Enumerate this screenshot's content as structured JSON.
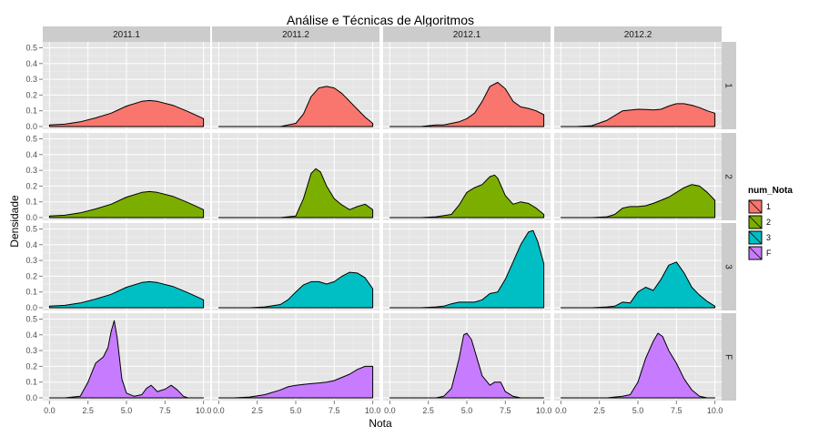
{
  "chart_data": {
    "type": "area",
    "subtype": "faceted density (ridge grid)",
    "title": "Análise e Técnicas de Algoritmos",
    "xlabel": "Nota",
    "ylabel": "Densidade",
    "xlim": [
      0,
      10
    ],
    "ylim": [
      0,
      0.52
    ],
    "x_ticks": [
      "0.0",
      "2.5",
      "5.0",
      "7.5",
      "10.0"
    ],
    "y_ticks": [
      "0.0",
      "0.1",
      "0.2",
      "0.3",
      "0.4",
      "0.5"
    ],
    "grid": true,
    "legend": {
      "title": "num_Nota",
      "position": "right",
      "entries": [
        {
          "label": "1",
          "color": "#F8766D"
        },
        {
          "label": "2",
          "color": "#7CAE00"
        },
        {
          "label": "3",
          "color": "#00BFC4"
        },
        {
          "label": "F",
          "color": "#C77CFF"
        }
      ]
    },
    "col_facets": [
      "2011.1",
      "2011.2",
      "2012.1",
      "2012.2"
    ],
    "row_facets": [
      "1",
      "2",
      "3",
      "F"
    ],
    "panels": [
      [
        {
          "x": [
            0,
            1,
            2,
            3,
            4,
            5,
            6,
            6.5,
            7,
            8,
            9,
            10
          ],
          "y": [
            0.01,
            0.015,
            0.03,
            0.055,
            0.085,
            0.13,
            0.16,
            0.165,
            0.16,
            0.135,
            0.095,
            0.05
          ]
        },
        {
          "x": [
            0,
            2,
            4,
            5,
            5.5,
            6,
            6.5,
            7,
            7.5,
            8,
            8.5,
            9,
            9.5,
            10
          ],
          "y": [
            0,
            0,
            0,
            0.02,
            0.08,
            0.19,
            0.245,
            0.255,
            0.245,
            0.21,
            0.16,
            0.11,
            0.06,
            0.02
          ]
        },
        {
          "x": [
            0,
            2,
            2.5,
            3,
            3.5,
            4,
            4.5,
            5,
            5.5,
            6,
            6.5,
            7,
            7.5,
            8,
            8.5,
            9,
            9.5,
            10
          ],
          "y": [
            0,
            0,
            0.005,
            0.01,
            0.01,
            0.02,
            0.03,
            0.05,
            0.085,
            0.16,
            0.255,
            0.28,
            0.24,
            0.16,
            0.125,
            0.115,
            0.1,
            0.075
          ]
        },
        {
          "x": [
            0,
            1,
            2,
            3,
            4,
            5,
            5.5,
            6,
            6.5,
            7,
            7.5,
            8,
            8.5,
            9,
            9.5,
            10
          ],
          "y": [
            0,
            0,
            0.005,
            0.04,
            0.1,
            0.11,
            0.108,
            0.105,
            0.11,
            0.13,
            0.145,
            0.145,
            0.135,
            0.12,
            0.1,
            0.085
          ]
        }
      ],
      [
        {
          "x": [
            0,
            1,
            2,
            3,
            4,
            5,
            6,
            6.5,
            7,
            8,
            9,
            10
          ],
          "y": [
            0.01,
            0.015,
            0.03,
            0.055,
            0.085,
            0.13,
            0.16,
            0.165,
            0.16,
            0.135,
            0.095,
            0.05
          ]
        },
        {
          "x": [
            0,
            2,
            4,
            5,
            5.5,
            6,
            6.3,
            6.6,
            7,
            7.5,
            8,
            8.5,
            9,
            9.5,
            10
          ],
          "y": [
            0,
            0,
            0,
            0.01,
            0.12,
            0.28,
            0.31,
            0.29,
            0.2,
            0.12,
            0.08,
            0.05,
            0.07,
            0.085,
            0.05
          ]
        },
        {
          "x": [
            0,
            2,
            3,
            4,
            4.5,
            5,
            5.5,
            6,
            6.5,
            6.8,
            7,
            7.5,
            8,
            8.5,
            9,
            9.5,
            10
          ],
          "y": [
            0,
            0,
            0.005,
            0.02,
            0.08,
            0.16,
            0.19,
            0.21,
            0.26,
            0.27,
            0.25,
            0.14,
            0.085,
            0.1,
            0.09,
            0.06,
            0.02
          ]
        },
        {
          "x": [
            0,
            2,
            3,
            3.5,
            4,
            4.5,
            5,
            5.5,
            6,
            6.5,
            7,
            7.5,
            8,
            8.5,
            9,
            9.5,
            10
          ],
          "y": [
            0,
            0,
            0.005,
            0.02,
            0.06,
            0.07,
            0.07,
            0.075,
            0.09,
            0.11,
            0.13,
            0.16,
            0.19,
            0.21,
            0.2,
            0.16,
            0.11
          ]
        }
      ],
      [
        {
          "x": [
            0,
            1,
            2,
            3,
            4,
            5,
            6,
            6.5,
            7,
            8,
            9,
            10
          ],
          "y": [
            0.01,
            0.015,
            0.03,
            0.055,
            0.085,
            0.13,
            0.16,
            0.165,
            0.16,
            0.135,
            0.095,
            0.05
          ]
        },
        {
          "x": [
            0,
            2,
            3,
            4,
            4.5,
            5,
            5.5,
            6,
            6.5,
            7,
            7.5,
            8,
            8.5,
            9,
            9.5,
            10
          ],
          "y": [
            0,
            0,
            0.005,
            0.02,
            0.05,
            0.1,
            0.145,
            0.165,
            0.165,
            0.15,
            0.165,
            0.2,
            0.225,
            0.22,
            0.19,
            0.12
          ]
        },
        {
          "x": [
            0,
            2,
            3,
            3.5,
            4,
            4.5,
            5,
            5.5,
            6,
            6.5,
            7,
            7.5,
            8,
            8.5,
            9,
            9.3,
            9.6,
            10
          ],
          "y": [
            0,
            0,
            0.005,
            0.01,
            0.025,
            0.035,
            0.035,
            0.035,
            0.05,
            0.09,
            0.1,
            0.18,
            0.29,
            0.4,
            0.48,
            0.49,
            0.42,
            0.28
          ]
        },
        {
          "x": [
            0,
            2,
            3,
            3.5,
            4,
            4.5,
            5,
            5.5,
            6,
            6.5,
            7,
            7.5,
            8,
            8.5,
            9,
            9.5,
            10
          ],
          "y": [
            0,
            0,
            0.005,
            0.01,
            0.035,
            0.03,
            0.1,
            0.13,
            0.11,
            0.18,
            0.27,
            0.29,
            0.22,
            0.13,
            0.08,
            0.04,
            0.01
          ]
        }
      ],
      [
        {
          "x": [
            0,
            1,
            2,
            2.5,
            3,
            3.5,
            3.8,
            4,
            4.2,
            4.4,
            4.7,
            5,
            5.5,
            6,
            6.3,
            6.6,
            7,
            7.5,
            7.9,
            8.3,
            8.7,
            9,
            10
          ],
          "y": [
            0,
            0,
            0.01,
            0.1,
            0.22,
            0.26,
            0.32,
            0.42,
            0.49,
            0.38,
            0.12,
            0.03,
            0.01,
            0.02,
            0.06,
            0.08,
            0.04,
            0.055,
            0.08,
            0.05,
            0.01,
            0,
            0
          ]
        },
        {
          "x": [
            0,
            1,
            2,
            3,
            4,
            4.5,
            5,
            5.5,
            6,
            6.5,
            7,
            7.5,
            8,
            8.5,
            9,
            9.5,
            10
          ],
          "y": [
            0,
            0,
            0.005,
            0.02,
            0.05,
            0.07,
            0.08,
            0.085,
            0.09,
            0.095,
            0.1,
            0.11,
            0.13,
            0.15,
            0.18,
            0.2,
            0.2
          ]
        },
        {
          "x": [
            0,
            2,
            3,
            3.5,
            4,
            4.5,
            4.8,
            5,
            5.3,
            5.6,
            6,
            6.5,
            6.8,
            7.2,
            7.5,
            8,
            8.5,
            9,
            10
          ],
          "y": [
            0,
            0,
            0,
            0.01,
            0.06,
            0.25,
            0.4,
            0.41,
            0.37,
            0.27,
            0.14,
            0.08,
            0.1,
            0.1,
            0.04,
            0.01,
            0,
            0,
            0
          ]
        },
        {
          "x": [
            0,
            2,
            3,
            4,
            4.5,
            5,
            5.5,
            6,
            6.3,
            6.6,
            7,
            7.5,
            8,
            8.5,
            9,
            9.5,
            10
          ],
          "y": [
            0,
            0,
            0,
            0.01,
            0.02,
            0.1,
            0.25,
            0.36,
            0.41,
            0.39,
            0.3,
            0.22,
            0.12,
            0.05,
            0.01,
            0,
            0
          ]
        }
      ]
    ]
  }
}
